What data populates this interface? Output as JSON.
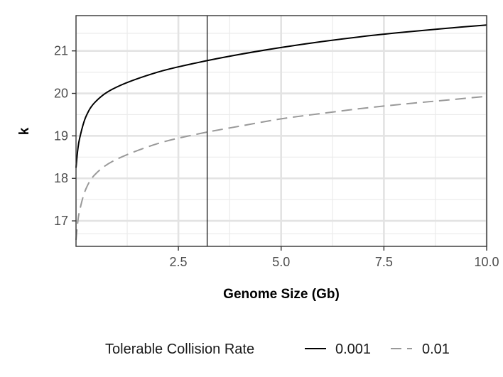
{
  "chart_data": {
    "type": "line",
    "xlabel": "Genome Size (Gb)",
    "ylabel": "k",
    "xlim": [
      0.01,
      10.0
    ],
    "ylim": [
      16.4,
      21.83
    ],
    "x_ticks": [
      2.5,
      5.0,
      7.5,
      10.0
    ],
    "x_tick_labels": [
      "2.5",
      "5.0",
      "7.5",
      "10.0"
    ],
    "y_ticks": [
      17,
      18,
      19,
      20,
      21
    ],
    "y_tick_labels": [
      "17",
      "18",
      "19",
      "20",
      "21"
    ],
    "grid": true,
    "vline_x": 3.2,
    "legend": {
      "title": "Tolerable Collision Rate",
      "position": "bottom"
    },
    "series": [
      {
        "name": "0.001",
        "color": "#000000",
        "dash": "solid",
        "x": [
          0.01,
          0.05,
          0.1,
          0.25,
          0.5,
          1.0,
          2.0,
          3.0,
          4.0,
          5.0,
          6.0,
          7.0,
          8.0,
          9.0,
          10.0
        ],
        "y": [
          18.25,
          18.65,
          18.95,
          19.45,
          19.82,
          20.15,
          20.5,
          20.73,
          20.92,
          21.08,
          21.22,
          21.34,
          21.44,
          21.53,
          21.61
        ]
      },
      {
        "name": "0.01",
        "color": "#999999",
        "dash": "dashed",
        "x": [
          0.01,
          0.05,
          0.1,
          0.25,
          0.5,
          1.0,
          2.0,
          3.0,
          4.0,
          5.0,
          6.0,
          7.0,
          8.0,
          9.0,
          10.0
        ],
        "y": [
          16.55,
          16.95,
          17.25,
          17.75,
          18.12,
          18.45,
          18.82,
          19.05,
          19.23,
          19.4,
          19.53,
          19.65,
          19.75,
          19.84,
          19.93
        ]
      }
    ]
  }
}
